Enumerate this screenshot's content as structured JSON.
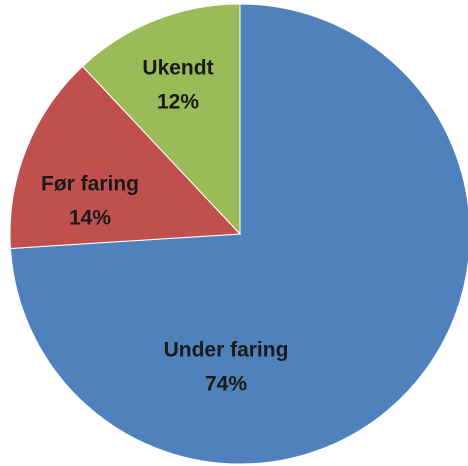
{
  "chart_data": {
    "type": "pie",
    "categories": [
      "Under faring",
      "Før faring",
      "Ukendt"
    ],
    "values": [
      74,
      14,
      12
    ],
    "value_labels": [
      "74%",
      "14%",
      "12%"
    ],
    "colors": [
      "#4f81bd",
      "#c0504d",
      "#9bbb59"
    ]
  }
}
